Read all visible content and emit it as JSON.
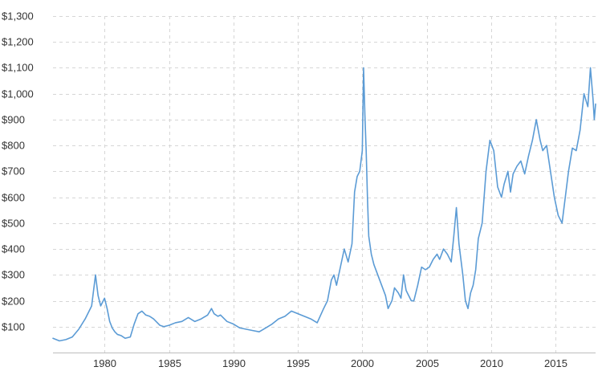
{
  "chart_data": {
    "type": "line",
    "title": "",
    "xlabel": "",
    "ylabel": "",
    "xlim": [
      1976.0,
      2018.1
    ],
    "ylim": [
      0,
      1300
    ],
    "grid": true,
    "legend": "none",
    "line_color": "#5b9bd5",
    "x_ticks": [
      1980,
      1985,
      1990,
      1995,
      2000,
      2005,
      2010,
      2015
    ],
    "x_tick_labels": [
      "1980",
      "1985",
      "1990",
      "1995",
      "2000",
      "2005",
      "2010",
      "2015"
    ],
    "y_ticks": [
      100,
      200,
      300,
      400,
      500,
      600,
      700,
      800,
      900,
      1000,
      1100,
      1200,
      1300
    ],
    "y_tick_labels": [
      "$100",
      "$200",
      "$300",
      "$400",
      "$500",
      "$600",
      "$700",
      "$800",
      "$900",
      "$1,000",
      "$1,100",
      "$1,200",
      "$1,300"
    ],
    "series": [
      {
        "x": [
          1976.0,
          1976.5,
          1977.0,
          1977.5,
          1978.0,
          1978.5,
          1979.0,
          1979.3,
          1979.5,
          1979.7,
          1979.9,
          1980.0,
          1980.2,
          1980.4,
          1980.6,
          1980.8,
          1981.0,
          1981.3,
          1981.6,
          1982.0,
          1982.3,
          1982.6,
          1982.9,
          1983.2,
          1983.5,
          1983.8,
          1984.0,
          1984.3,
          1984.6,
          1985.0,
          1985.5,
          1986.0,
          1986.5,
          1987.0,
          1987.5,
          1988.0,
          1988.3,
          1988.5,
          1988.8,
          1989.0,
          1989.5,
          1990.0,
          1990.5,
          1991.0,
          1991.5,
          1992.0,
          1992.5,
          1993.0,
          1993.5,
          1994.0,
          1994.5,
          1995.0,
          1995.5,
          1996.0,
          1996.5,
          1997.0,
          1997.3,
          1997.6,
          1997.8,
          1998.0,
          1998.3,
          1998.6,
          1998.9,
          1999.2,
          1999.4,
          1999.6,
          1999.8,
          2000.0,
          2000.1,
          2000.2,
          2000.3,
          2000.4,
          2000.5,
          2000.7,
          2000.9,
          2001.2,
          2001.5,
          2001.8,
          2002.0,
          2002.3,
          2002.5,
          2002.8,
          2003.0,
          2003.2,
          2003.4,
          2003.6,
          2003.8,
          2004.0,
          2004.3,
          2004.6,
          2004.9,
          2005.2,
          2005.5,
          2005.8,
          2006.0,
          2006.3,
          2006.6,
          2006.9,
          2007.1,
          2007.3,
          2007.5,
          2007.8,
          2008.0,
          2008.2,
          2008.4,
          2008.6,
          2008.8,
          2009.0,
          2009.3,
          2009.6,
          2009.9,
          2010.2,
          2010.5,
          2010.8,
          2011.0,
          2011.3,
          2011.5,
          2011.7,
          2012.0,
          2012.3,
          2012.6,
          2012.9,
          2013.2,
          2013.5,
          2013.8,
          2014.0,
          2014.3,
          2014.6,
          2014.9,
          2015.2,
          2015.5,
          2015.8,
          2016.0,
          2016.3,
          2016.6,
          2016.9,
          2017.2,
          2017.5,
          2017.7,
          2017.9,
          2018.0,
          2018.1
        ],
        "values": [
          55,
          45,
          50,
          60,
          90,
          130,
          180,
          300,
          220,
          180,
          200,
          210,
          170,
          120,
          95,
          80,
          70,
          65,
          55,
          60,
          110,
          150,
          160,
          145,
          140,
          130,
          120,
          105,
          100,
          105,
          115,
          120,
          135,
          120,
          130,
          145,
          170,
          150,
          140,
          145,
          120,
          110,
          95,
          90,
          85,
          80,
          95,
          110,
          130,
          140,
          160,
          150,
          140,
          130,
          115,
          170,
          200,
          280,
          300,
          260,
          330,
          400,
          350,
          420,
          620,
          680,
          700,
          780,
          1100,
          920,
          780,
          600,
          450,
          380,
          340,
          300,
          260,
          220,
          170,
          200,
          250,
          230,
          210,
          300,
          240,
          220,
          200,
          200,
          260,
          330,
          320,
          330,
          360,
          380,
          360,
          400,
          380,
          350,
          450,
          560,
          420,
          300,
          200,
          170,
          230,
          260,
          320,
          440,
          500,
          700,
          820,
          780,
          640,
          600,
          650,
          700,
          620,
          690,
          720,
          740,
          690,
          760,
          820,
          900,
          820,
          780,
          800,
          700,
          600,
          530,
          500,
          620,
          700,
          790,
          780,
          860,
          1000,
          950,
          1100,
          980,
          900,
          960
        ]
      }
    ]
  }
}
